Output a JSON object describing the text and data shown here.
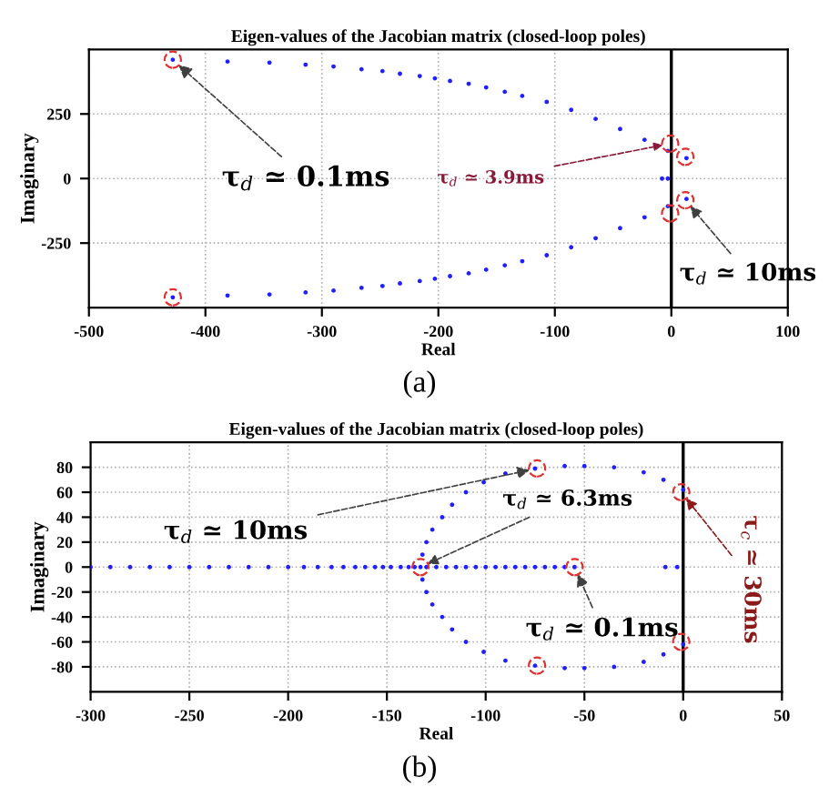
{
  "chart_data": [
    {
      "type": "scatter",
      "title": "Eigen-values of the Jacobian matrix (closed-loop poles)",
      "xlabel": "Real",
      "ylabel": "Imaginary",
      "xlim": [
        -500,
        100
      ],
      "xticks": [
        -500,
        -400,
        -300,
        -200,
        -100,
        0,
        100
      ],
      "ylim": [
        -500,
        500
      ],
      "yticks": [
        -250,
        0,
        250
      ],
      "grid": true,
      "marker": "circle",
      "series": [
        {
          "color": "#1f1fff",
          "x": [
            -428,
            -381,
            -345,
            -314,
            -290,
            -266,
            -248,
            -233,
            -216,
            -203,
            -190,
            -174,
            -159,
            -143,
            -128,
            -107,
            -86,
            -65,
            -44,
            -23,
            -3,
            13,
            -428,
            -381,
            -345,
            -314,
            -290,
            -266,
            -248,
            -233,
            -216,
            -203,
            -190,
            -174,
            -159,
            -143,
            -128,
            -107,
            -86,
            -65,
            -44,
            -23,
            -3,
            13,
            -8,
            -3
          ],
          "values": [
            460,
            453,
            449,
            441,
            434,
            423,
            416,
            406,
            397,
            388,
            378,
            367,
            353,
            336,
            320,
            297,
            266,
            231,
            192,
            150,
            107,
            79,
            -460,
            -453,
            -449,
            -441,
            -434,
            -423,
            -416,
            -406,
            -397,
            -388,
            -378,
            -367,
            -353,
            -336,
            -320,
            -297,
            -266,
            -231,
            -192,
            -150,
            -107,
            -79,
            0,
            0
          ]
        },
        {
          "color": "#e03030",
          "line_style": "dashed",
          "x": [
            -428,
            -428,
            -1,
            -1,
            12,
            12
          ],
          "values": [
            460,
            -460,
            135,
            -135,
            84,
            -84
          ]
        }
      ],
      "ref_lines": [
        {
          "axis": "x",
          "value": 0,
          "color": "#000000"
        }
      ],
      "annotations": [
        {
          "text": "τ$_{d}$ ≃ 0.1ms",
          "x": -428,
          "y": 460
        },
        {
          "text": "τ$_{d}$ ≃ 3.9ms",
          "x": -1,
          "y": 135
        },
        {
          "text": "τ$_{d}$ ≃ 10ms",
          "x": 12,
          "y": -84
        },
        "(a)"
      ]
    },
    {
      "type": "scatter",
      "title": "Eigen-values of the Jacobian matrix (closed-loop poles)",
      "xlabel": "Real",
      "ylabel": "Imaginary",
      "xlim": [
        -300,
        50
      ],
      "xticks": [
        -300,
        -250,
        -200,
        -150,
        -100,
        -50,
        0,
        50
      ],
      "ylim": [
        -100,
        100
      ],
      "yticks": [
        -80,
        -60,
        -40,
        -20,
        0,
        20,
        40,
        60,
        80
      ],
      "grid": true,
      "marker": "circle",
      "series": [
        {
          "color": "#1f1fff",
          "x": [
            -300,
            -290,
            -280,
            -270,
            -260,
            -250,
            -240,
            -230,
            -220,
            -210,
            -200,
            -192,
            -185,
            -178,
            -172,
            -166,
            -161,
            -156,
            -152,
            -148,
            -143,
            -139,
            -136,
            -130,
            -125,
            -120,
            -115,
            -110,
            -105,
            -100,
            -95,
            -90,
            -85,
            -80,
            -75,
            -70,
            -65,
            -60,
            -55,
            -9,
            -3,
            -133,
            -132,
            -130,
            -127,
            -122,
            -117,
            -110,
            -101,
            -90,
            -75,
            -60,
            -50,
            -35,
            -20,
            -10,
            0,
            -132,
            -130,
            -127,
            -122,
            -117,
            -110,
            -101,
            -90,
            -75,
            -60,
            -50,
            -35,
            -20,
            -10,
            0
          ],
          "values": [
            0,
            0,
            0,
            0,
            0,
            0,
            0,
            0,
            0,
            0,
            0,
            0,
            0,
            0,
            0,
            0,
            0,
            0,
            0,
            0,
            0,
            0,
            0,
            0,
            0,
            0,
            0,
            0,
            0,
            0,
            0,
            0,
            0,
            0,
            0,
            0,
            0,
            0,
            0,
            0,
            0,
            0,
            10,
            20,
            30,
            40,
            50,
            60,
            68,
            75,
            79,
            81,
            81,
            80,
            76,
            70,
            62,
            -10,
            -20,
            -30,
            -40,
            -50,
            -60,
            -68,
            -75,
            -79,
            -81,
            -81,
            -80,
            -76,
            -70,
            -62
          ]
        },
        {
          "color": "#e03030",
          "line_style": "dashed",
          "x": [
            -133,
            -55,
            -74,
            -74,
            -1,
            -1
          ],
          "values": [
            0,
            0,
            79,
            -79,
            60,
            -60
          ]
        }
      ],
      "ref_lines": [
        {
          "axis": "x",
          "value": 0,
          "color": "#000000"
        }
      ],
      "annotations": [
        {
          "text": "τ$_{d}$ ≃ 10ms",
          "x": -74,
          "y": 79
        },
        {
          "text": "τ$_{d}$ ≃ 6.3ms",
          "x": -133,
          "y": 0
        },
        {
          "text": "τ$_{d}$ ≃ 0.1ms",
          "x": -55,
          "y": 0
        },
        {
          "text": "τ$_{c}$ ≃ 30ms",
          "x": -1,
          "y": 60
        },
        "(b)"
      ]
    }
  ]
}
